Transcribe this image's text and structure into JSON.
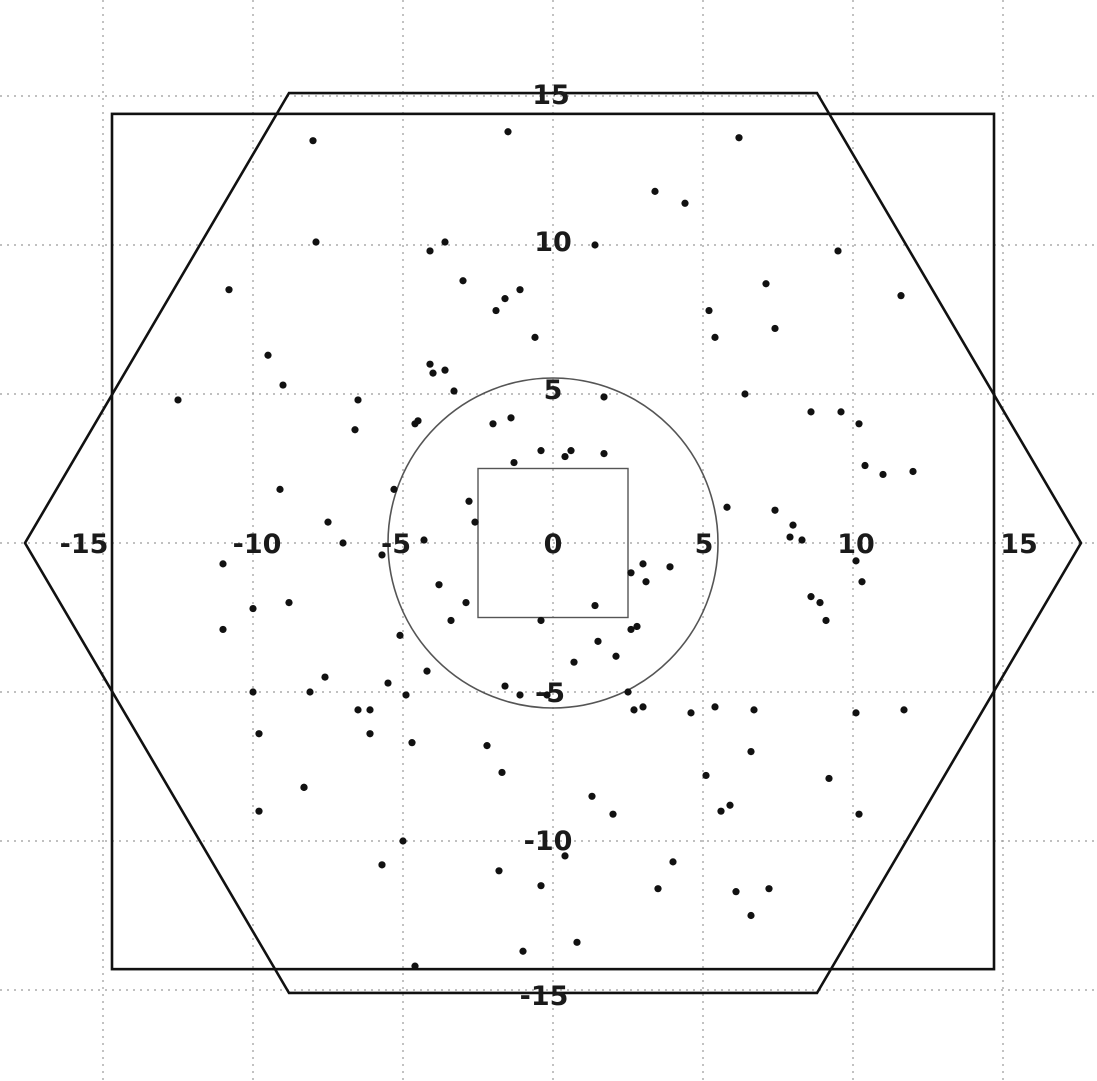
{
  "chart_data": {
    "type": "scatter",
    "title": "",
    "xlabel": "",
    "ylabel": "",
    "xlim": [
      -17.6,
      17.8
    ],
    "ylim": [
      -18.0,
      17.5
    ],
    "grid": true,
    "x_ticks": [
      "-15",
      "-10",
      "-5",
      "0",
      "5",
      "10",
      "15"
    ],
    "y_ticks": [
      "15",
      "10",
      "5",
      "-5",
      "-10",
      "-15"
    ],
    "origin_label": "0",
    "overlays": {
      "square_outer": {
        "xmin": -14.7,
        "xmax": 14.7,
        "ymin": -14.3,
        "ymax": 14.4
      },
      "hexagon": [
        [
          17.6,
          0
        ],
        [
          8.8,
          15.1
        ],
        [
          -8.8,
          15.1
        ],
        [
          -17.6,
          0
        ],
        [
          -8.8,
          -15.1
        ],
        [
          8.8,
          -15.1
        ]
      ],
      "circle": {
        "cx": 0,
        "cy": 0,
        "r": 5.5
      },
      "square_inner": {
        "xmin": -2.5,
        "xmax": 2.5,
        "ymin": -2.5,
        "ymax": 2.5
      }
    },
    "series": [
      {
        "x": [
          -8.0,
          -1.5,
          6.2,
          3.4,
          4.4,
          -7.9,
          1.4,
          9.5,
          -10.8,
          7.1,
          11.6,
          -4.1,
          -3.6,
          -3.0,
          -1.9,
          -1.6,
          -1.1,
          5.2,
          5.4,
          7.4,
          -0.6,
          -9.5,
          -4.1,
          -3.6,
          -4.0,
          -9.0,
          -12.5,
          -6.5,
          -3.3,
          1.7,
          6.4,
          -6.6,
          -4.5,
          -4.6,
          -2.0,
          -1.4,
          8.6,
          9.6,
          10.2,
          -0.4,
          0.6,
          0.4,
          1.7,
          -1.3,
          10.4,
          11.0,
          12.0,
          -9.1,
          -5.3,
          5.8,
          -2.8,
          7.4,
          -7.5,
          -2.6,
          -7.0,
          -4.3,
          8.0,
          7.9,
          8.3,
          -11.0,
          -5.7,
          10.1,
          2.6,
          3.0,
          3.9,
          3.1,
          10.3,
          -3.8,
          -11.0,
          -10.0,
          -8.8,
          -2.9,
          -3.4,
          2.8,
          8.6,
          8.9,
          9.1,
          -0.4,
          1.4,
          -5.1,
          2.6,
          1.5,
          2.1,
          0.7,
          -4.2,
          -7.6,
          -5.5,
          -8.1,
          -1.6,
          -1.1,
          -0.2,
          -10.0,
          -6.5,
          -6.1,
          -4.9,
          2.5,
          3.0,
          2.7,
          4.6,
          5.4,
          6.7,
          10.1,
          11.7,
          -9.8,
          -6.1,
          -4.7,
          -2.2,
          6.6,
          -1.7,
          5.1,
          9.2,
          -8.3,
          -8.3,
          -9.8,
          1.3,
          2.0,
          5.6,
          5.9,
          10.2,
          -5.0,
          0.4,
          4.0,
          -5.7,
          -1.8,
          -0.4,
          3.5,
          6.1,
          6.6,
          7.2,
          0.8,
          -1.0,
          -4.6
        ],
        "y": [
          13.5,
          13.8,
          13.6,
          11.8,
          11.4,
          10.1,
          10.0,
          9.8,
          8.5,
          8.7,
          8.3,
          9.8,
          10.1,
          8.8,
          7.8,
          8.2,
          8.5,
          7.8,
          6.9,
          7.2,
          6.9,
          6.3,
          6.0,
          5.8,
          5.7,
          5.3,
          4.8,
          4.8,
          5.1,
          4.9,
          5.0,
          3.8,
          4.1,
          4.0,
          4.0,
          4.2,
          4.4,
          4.4,
          4.0,
          3.1,
          3.1,
          2.9,
          3.0,
          2.7,
          2.6,
          2.3,
          2.4,
          1.8,
          1.8,
          1.2,
          1.4,
          1.1,
          0.7,
          0.7,
          0.0,
          0.1,
          0.6,
          0.2,
          0.1,
          -0.7,
          -0.4,
          -0.6,
          -1.0,
          -0.7,
          -0.8,
          -1.3,
          -1.3,
          -1.4,
          -2.9,
          -2.2,
          -2.0,
          -2.0,
          -2.6,
          -2.8,
          -1.8,
          -2.0,
          -2.6,
          -2.6,
          -2.1,
          -3.1,
          -2.9,
          -3.3,
          -3.8,
          -4.0,
          -4.3,
          -4.5,
          -4.7,
          -5.0,
          -4.8,
          -5.1,
          -5.1,
          -5.0,
          -5.6,
          -5.6,
          -5.1,
          -5.0,
          -5.5,
          -5.6,
          -5.7,
          -5.5,
          -5.6,
          -5.7,
          -5.6,
          -6.4,
          -6.4,
          -6.7,
          -6.8,
          -7.0,
          -7.7,
          -7.8,
          -7.9,
          -8.2,
          -8.2,
          -9.0,
          -8.5,
          -9.1,
          -9.0,
          -8.8,
          -9.1,
          -10.0,
          -10.5,
          -10.7,
          -10.8,
          -11.0,
          -11.5,
          -11.6,
          -11.7,
          -12.5,
          -11.6,
          -13.4,
          -13.7,
          -14.2
        ]
      }
    ]
  }
}
